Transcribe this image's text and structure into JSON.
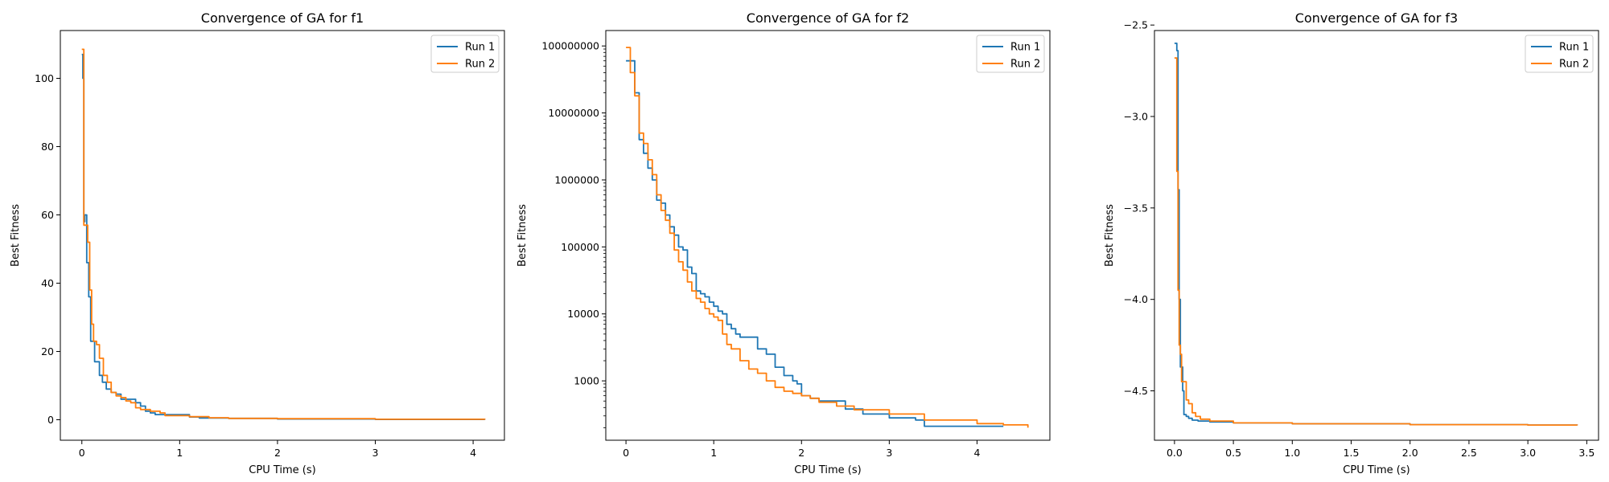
{
  "chart_data": [
    {
      "type": "line",
      "title": "Convergence of GA for f1",
      "xlabel": "CPU Time (s)",
      "ylabel": "Best Fitness",
      "xlim": [
        -0.22,
        4.32
      ],
      "ylim": [
        -6,
        114
      ],
      "xticks": [
        0,
        1,
        2,
        3,
        4
      ],
      "xtick_labels": [
        "0",
        "1",
        "2",
        "3",
        "4"
      ],
      "yticks": [
        0,
        20,
        40,
        60,
        80,
        100
      ],
      "ytick_labels": [
        "0",
        "20",
        "40",
        "60",
        "80",
        "100"
      ],
      "yscale": "linear",
      "grid": false,
      "legend_position": "top-right",
      "series": [
        {
          "name": "Run 1",
          "color": "#1f77b4",
          "x": [
            0.0,
            0.01,
            0.02,
            0.03,
            0.05,
            0.07,
            0.09,
            0.11,
            0.13,
            0.15,
            0.18,
            0.21,
            0.25,
            0.3,
            0.35,
            0.4,
            0.45,
            0.5,
            0.55,
            0.6,
            0.65,
            0.7,
            0.75,
            0.8,
            0.9,
            1.0,
            1.1,
            1.2,
            1.5,
            2.0,
            3.0,
            4.12
          ],
          "y": [
            107,
            100,
            58,
            60,
            46,
            36,
            23,
            23,
            17,
            17,
            13,
            11,
            9,
            8,
            7.5,
            6,
            6,
            6,
            5,
            4,
            2.5,
            2,
            1.5,
            1.5,
            1.5,
            1.5,
            0.8,
            0.5,
            0.4,
            0.2,
            0.1,
            0.05
          ]
        },
        {
          "name": "Run 2",
          "color": "#ff7f0e",
          "x": [
            0.0,
            0.01,
            0.02,
            0.04,
            0.06,
            0.08,
            0.1,
            0.12,
            0.15,
            0.18,
            0.22,
            0.26,
            0.3,
            0.35,
            0.4,
            0.45,
            0.5,
            0.55,
            0.6,
            0.7,
            0.8,
            0.85,
            1.0,
            1.1,
            1.3,
            1.5,
            2.0,
            3.0,
            4.12
          ],
          "y": [
            108.5,
            108.5,
            57,
            57,
            52,
            38,
            28,
            23,
            22,
            18,
            13,
            11,
            8,
            7,
            6.5,
            5.5,
            5,
            3.5,
            3,
            2.5,
            2,
            1.2,
            1.2,
            0.9,
            0.6,
            0.4,
            0.3,
            0.15,
            0.05
          ]
        }
      ]
    },
    {
      "type": "line",
      "title": "Convergence of GA for f2",
      "xlabel": "CPU Time (s)",
      "ylabel": "Best Fitness",
      "xlim": [
        -0.23,
        4.83
      ],
      "ylim": [
        130,
        170000000
      ],
      "xticks": [
        0,
        1,
        2,
        3,
        4
      ],
      "xtick_labels": [
        "0",
        "1",
        "2",
        "3",
        "4"
      ],
      "yticks": [
        1000,
        10000,
        100000,
        1000000,
        10000000,
        100000000
      ],
      "ytick_labels": [
        "1000",
        "10000",
        "100000",
        "1000000",
        "10000000",
        "100000000"
      ],
      "yscale": "log",
      "grid": false,
      "legend_position": "top-right",
      "series": [
        {
          "name": "Run 1",
          "color": "#1f77b4",
          "x": [
            0.0,
            0.05,
            0.1,
            0.15,
            0.2,
            0.25,
            0.3,
            0.35,
            0.4,
            0.45,
            0.5,
            0.55,
            0.6,
            0.65,
            0.7,
            0.75,
            0.8,
            0.85,
            0.9,
            0.95,
            1.0,
            1.05,
            1.1,
            1.15,
            1.2,
            1.25,
            1.3,
            1.4,
            1.5,
            1.6,
            1.7,
            1.8,
            1.9,
            1.95,
            2.0,
            2.1,
            2.2,
            2.3,
            2.5,
            2.7,
            3.0,
            3.3,
            3.4,
            3.7,
            4.0,
            4.3
          ],
          "y": [
            60000000,
            60000000,
            20000000,
            4000000,
            2500000,
            1500000,
            1000000,
            500000,
            450000,
            300000,
            200000,
            150000,
            100000,
            90000,
            50000,
            40000,
            22000,
            20000,
            18000,
            15000,
            13000,
            11000,
            10000,
            7000,
            6000,
            5000,
            4500,
            4500,
            3000,
            2500,
            1600,
            1200,
            1000,
            900,
            600,
            550,
            500,
            500,
            380,
            320,
            280,
            260,
            210,
            210,
            210,
            210
          ]
        },
        {
          "name": "Run 2",
          "color": "#ff7f0e",
          "x": [
            0.0,
            0.05,
            0.1,
            0.15,
            0.2,
            0.25,
            0.3,
            0.35,
            0.4,
            0.45,
            0.5,
            0.55,
            0.6,
            0.65,
            0.7,
            0.75,
            0.8,
            0.85,
            0.9,
            0.95,
            1.0,
            1.05,
            1.1,
            1.15,
            1.2,
            1.3,
            1.4,
            1.5,
            1.6,
            1.7,
            1.8,
            1.9,
            2.0,
            2.1,
            2.2,
            2.4,
            2.6,
            3.0,
            3.4,
            4.0,
            4.3,
            4.5,
            4.58
          ],
          "y": [
            95000000,
            40000000,
            18000000,
            5000000,
            3500000,
            2000000,
            1200000,
            600000,
            350000,
            250000,
            160000,
            90000,
            60000,
            45000,
            30000,
            22000,
            17000,
            15000,
            12000,
            10000,
            9000,
            8000,
            5000,
            3500,
            3000,
            2000,
            1500,
            1300,
            1000,
            800,
            700,
            650,
            600,
            550,
            480,
            420,
            370,
            320,
            260,
            230,
            220,
            220,
            200
          ]
        }
      ]
    },
    {
      "type": "line",
      "title": "Convergence of GA for f3",
      "xlabel": "CPU Time (s)",
      "ylabel": "Best Fitness",
      "xlim": [
        -0.17,
        3.6
      ],
      "ylim": [
        -4.77,
        -2.53
      ],
      "xticks": [
        0.0,
        0.5,
        1.0,
        1.5,
        2.0,
        2.5,
        3.0,
        3.5
      ],
      "xtick_labels": [
        "0.0",
        "0.5",
        "1.0",
        "1.5",
        "2.0",
        "2.5",
        "3.0",
        "3.5"
      ],
      "yticks": [
        -4.5,
        -4.0,
        -3.5,
        -3.0,
        -2.5
      ],
      "ytick_labels": [
        "−4.5",
        "−4.0",
        "−3.5",
        "−3.0",
        "−2.5"
      ],
      "yscale": "linear",
      "grid": false,
      "legend_position": "top-right",
      "series": [
        {
          "name": "Run 1",
          "color": "#1f77b4",
          "x": [
            0.0,
            0.01,
            0.02,
            0.03,
            0.04,
            0.05,
            0.06,
            0.07,
            0.08,
            0.1,
            0.12,
            0.15,
            0.2,
            0.3,
            0.5,
            1.0,
            2.0,
            3.0,
            3.42
          ],
          "y": [
            -2.6,
            -2.6,
            -2.64,
            -3.4,
            -4.0,
            -4.37,
            -4.37,
            -4.5,
            -4.63,
            -4.64,
            -4.65,
            -4.66,
            -4.665,
            -4.67,
            -4.675,
            -4.68,
            -4.685,
            -4.687,
            -4.688
          ]
        },
        {
          "name": "Run 2",
          "color": "#ff7f0e",
          "x": [
            0.0,
            0.01,
            0.02,
            0.03,
            0.04,
            0.05,
            0.06,
            0.08,
            0.1,
            0.12,
            0.15,
            0.18,
            0.22,
            0.3,
            0.5,
            1.0,
            2.0,
            3.0,
            3.42
          ],
          "y": [
            -2.68,
            -2.68,
            -3.3,
            -3.95,
            -4.25,
            -4.3,
            -4.45,
            -4.45,
            -4.55,
            -4.57,
            -4.62,
            -4.64,
            -4.655,
            -4.665,
            -4.675,
            -4.68,
            -4.685,
            -4.687,
            -4.688
          ]
        }
      ]
    }
  ]
}
